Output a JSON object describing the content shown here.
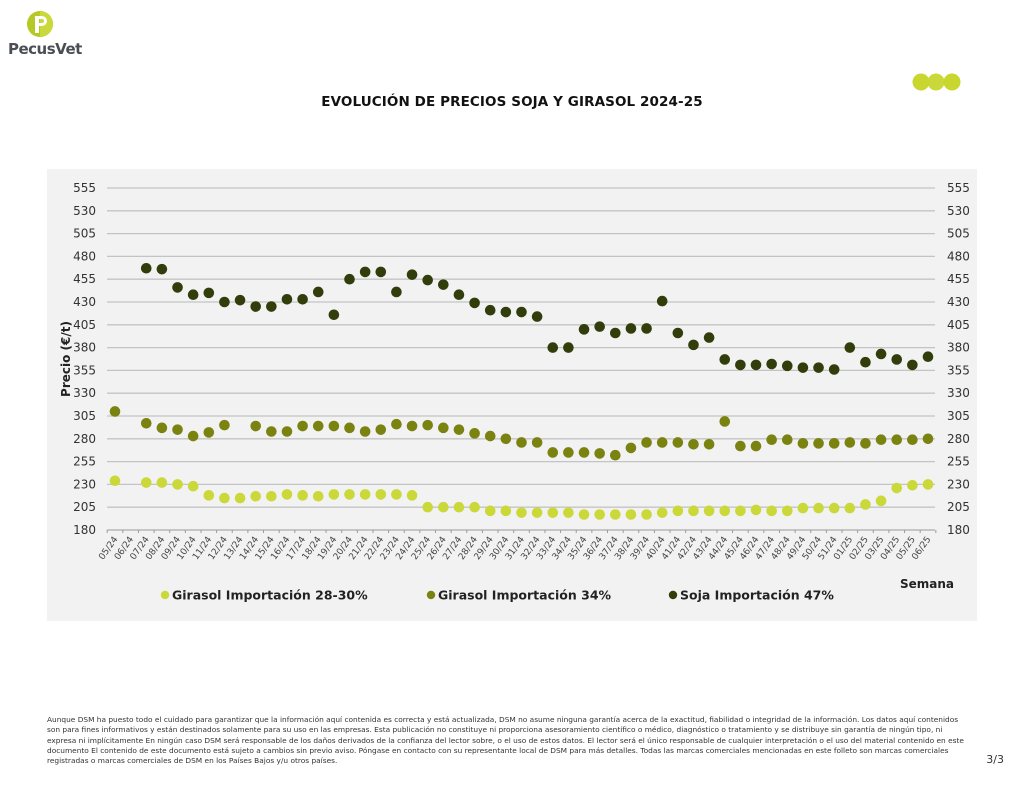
{
  "brand": {
    "name": "PecusVet",
    "logo_icon": "pecusvet-p-leaf-icon",
    "accent_light": "#c8d62e",
    "accent_dark": "#8fa31d",
    "decoration_icon": "three-dots-icon"
  },
  "page": {
    "title": "EVOLUCIÓN DE PRECIOS SOJA Y GIRASOL 2024-25",
    "page_number": "3/3",
    "disclaimer": "Aunque DSM ha puesto todo el cuidado para garantizar que la información aquí contenida es correcta y está actualizada, DSM no asume ninguna garantía acerca de la exactitud, fiabilidad o integridad de la información. Los datos aquí contenidos son para fines informativos y están destinados solamente para su uso en las empresas. Esta publicación no constituye ni proporciona asesoramiento científico o médico, diagnóstico o tratamiento y se distribuye sin garantía de ningún tipo, ni expresa ni implícitamente En ningún caso DSM será responsable de los daños derivados de la confianza del lector sobre, o el uso de estos datos. El lector será el único responsable de cualquier interpretación o el uso del material contenido en este documento El contenido de este documento está sujeto a cambios sin previo aviso. Póngase en contacto con su representante local de DSM para más detalles. Todas las marcas comerciales mencionadas en este folleto son marcas comerciales registradas o marcas comerciales de DSM en los Países Bajos y/u otros países."
  },
  "chart_data": {
    "type": "scatter",
    "title": "EVOLUCIÓN DE PRECIOS SOJA Y GIRASOL 2024-25",
    "xlabel": "Semana",
    "ylabel": "Precio (€/t)",
    "ylim": [
      180,
      555
    ],
    "yticks": [
      180,
      205,
      230,
      255,
      280,
      305,
      330,
      355,
      380,
      405,
      430,
      455,
      480,
      505,
      530,
      555
    ],
    "secondary_y_axis": true,
    "grid": true,
    "legend_position": "bottom",
    "categories": [
      "05/24",
      "06/24",
      "07/24",
      "08/24",
      "09/24",
      "10/24",
      "11/24",
      "12/24",
      "13/24",
      "14/24",
      "15/24",
      "16/24",
      "17/24",
      "18/24",
      "19/24",
      "20/24",
      "21/24",
      "22/24",
      "23/24",
      "24/24",
      "25/24",
      "26/24",
      "27/24",
      "28/24",
      "29/24",
      "30/24",
      "31/24",
      "32/24",
      "33/24",
      "34/24",
      "35/24",
      "36/24",
      "37/24",
      "38/24",
      "39/24",
      "40/24",
      "41/24",
      "42/24",
      "43/24",
      "44/24",
      "45/24",
      "46/24",
      "47/24",
      "48/24",
      "49/24",
      "50/24",
      "51/24",
      "01/25",
      "02/25",
      "03/25",
      "04/25",
      "05/25",
      "06/25"
    ],
    "series": [
      {
        "name": "Girasol Importación 28-30%",
        "color": "#cad83a",
        "values": [
          234,
          null,
          232,
          232,
          230,
          228,
          218,
          215,
          215,
          217,
          217,
          219,
          218,
          217,
          219,
          219,
          219,
          219,
          219,
          218,
          205,
          205,
          205,
          205,
          201,
          201,
          199,
          199,
          199,
          199,
          197,
          197,
          197,
          197,
          197,
          199,
          201,
          201,
          201,
          201,
          201,
          202,
          201,
          201,
          204,
          204,
          204,
          204,
          208,
          212,
          226,
          229,
          230
        ]
      },
      {
        "name": "Girasol Importación 34%",
        "color": "#7a8210",
        "values": [
          310,
          null,
          297,
          292,
          290,
          283,
          287,
          295,
          null,
          294,
          288,
          288,
          294,
          294,
          294,
          292,
          288,
          290,
          296,
          294,
          295,
          292,
          290,
          286,
          283,
          280,
          276,
          276,
          265,
          265,
          265,
          264,
          262,
          270,
          276,
          276,
          276,
          274,
          274,
          299,
          272,
          272,
          279,
          279,
          275,
          275,
          275,
          276,
          275,
          279,
          279,
          279,
          280
        ]
      },
      {
        "name": "Soja Importación 47%",
        "color": "#323d0c",
        "values": [
          null,
          null,
          467,
          466,
          446,
          438,
          440,
          430,
          432,
          425,
          425,
          433,
          433,
          441,
          416,
          455,
          463,
          463,
          441,
          460,
          454,
          449,
          438,
          429,
          421,
          419,
          419,
          414,
          380,
          380,
          400,
          403,
          396,
          401,
          401,
          431,
          396,
          383,
          391,
          367,
          361,
          361,
          362,
          360,
          358,
          358,
          356,
          380,
          364,
          373,
          367,
          361,
          370
        ]
      }
    ]
  }
}
